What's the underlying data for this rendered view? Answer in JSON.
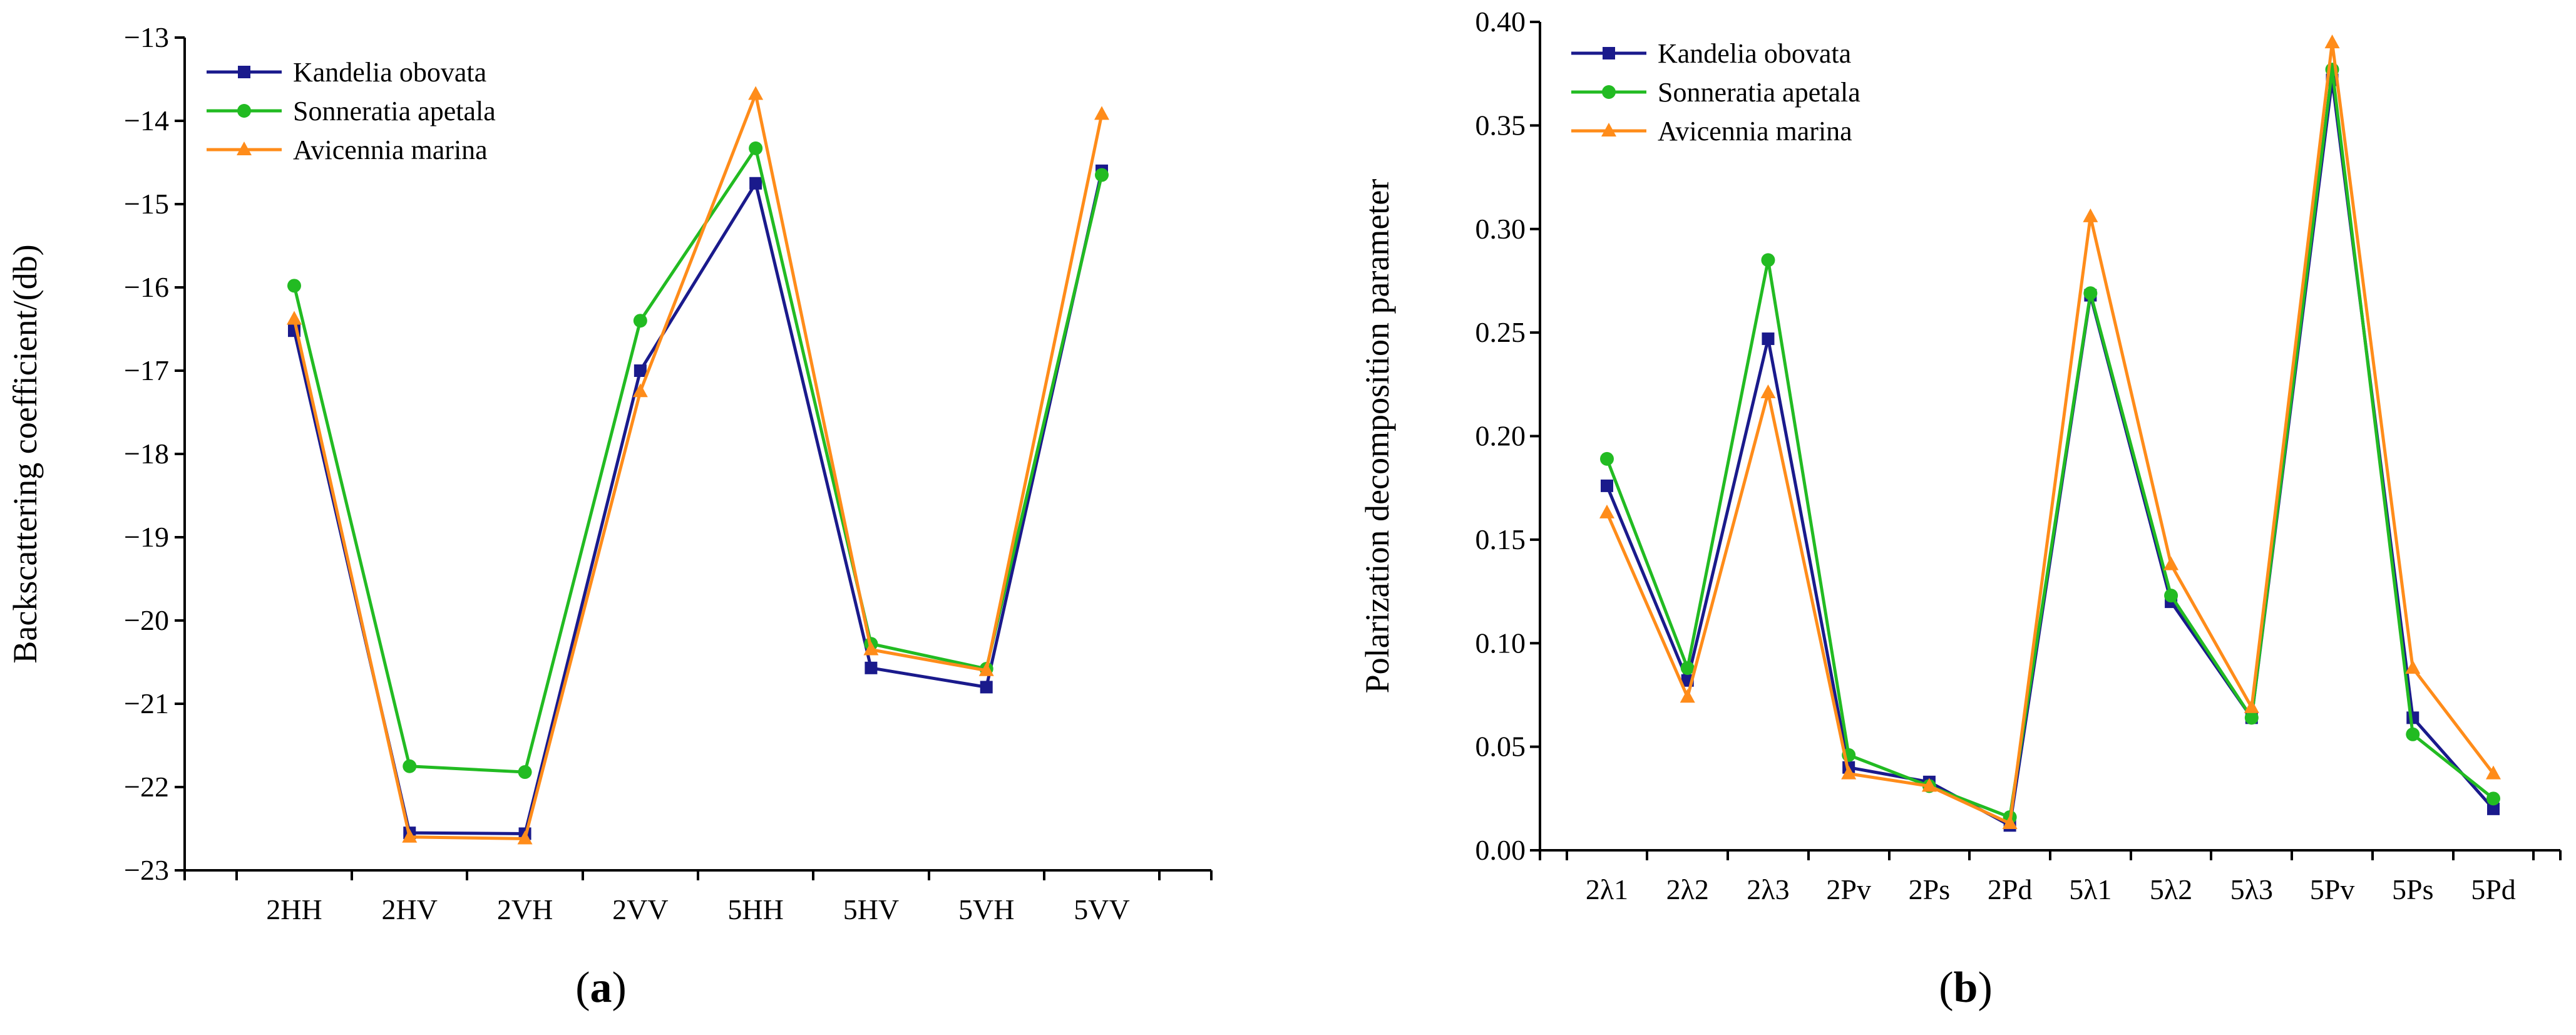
{
  "chart_data": [
    {
      "type": "line",
      "panel_label": "a",
      "title": "",
      "xlabel": "",
      "ylabel": "Backscattering coefficient/(db)",
      "categories": [
        "2HH",
        "2HV",
        "2VH",
        "2VV",
        "5HH",
        "5HV",
        "5VH",
        "5VV"
      ],
      "ylim": [
        -23,
        -13
      ],
      "yticks": [
        -23,
        -22,
        -21,
        -20,
        -19,
        -18,
        -17,
        -16,
        -15,
        -14,
        -13
      ],
      "ytick_labels": [
        "−23",
        "−22",
        "−21",
        "−20",
        "−19",
        "−18",
        "−17",
        "−16",
        "−15",
        "−14",
        "−13"
      ],
      "legend_position": "top-left",
      "series": [
        {
          "name": "Kandelia obovata",
          "color": "#1a1a8c",
          "marker": "square",
          "values": [
            -16.52,
            -22.55,
            -22.56,
            -17.0,
            -14.75,
            -20.57,
            -20.8,
            -14.6
          ]
        },
        {
          "name": "Sonneratia apetala",
          "color": "#22bb22",
          "marker": "circle",
          "values": [
            -15.98,
            -21.75,
            -21.82,
            -16.4,
            -14.33,
            -20.28,
            -20.58,
            -14.65
          ]
        },
        {
          "name": "Avicennia marina",
          "color": "#ff8c1a",
          "marker": "triangle",
          "values": [
            -16.38,
            -22.6,
            -22.62,
            -17.25,
            -13.68,
            -20.35,
            -20.6,
            -13.92
          ]
        }
      ]
    },
    {
      "type": "line",
      "panel_label": "b",
      "title": "",
      "xlabel": "",
      "ylabel": "Polarization decomposition parameter",
      "categories": [
        "2λ1",
        "2λ2",
        "2λ3",
        "2Pv",
        "2Ps",
        "2Pd",
        "5λ1",
        "5λ2",
        "5λ3",
        "5Pv",
        "5Ps",
        "5Pd"
      ],
      "ylim": [
        0,
        0.4
      ],
      "yticks": [
        0,
        0.05,
        0.1,
        0.15,
        0.2,
        0.25,
        0.3,
        0.35,
        0.4
      ],
      "ytick_labels": [
        "0.00",
        "0.05",
        "0.10",
        "0.15",
        "0.20",
        "0.25",
        "0.30",
        "0.35",
        "0.40"
      ],
      "legend_position": "top-left",
      "series": [
        {
          "name": "Kandelia obovata",
          "color": "#1a1a8c",
          "marker": "square",
          "values": [
            0.176,
            0.082,
            0.247,
            0.04,
            0.033,
            0.012,
            0.268,
            0.12,
            0.064,
            0.372,
            0.064,
            0.02
          ]
        },
        {
          "name": "Sonneratia apetala",
          "color": "#22bb22",
          "marker": "circle",
          "values": [
            0.189,
            0.088,
            0.285,
            0.046,
            0.031,
            0.016,
            0.269,
            0.123,
            0.064,
            0.377,
            0.056,
            0.025
          ]
        },
        {
          "name": "Avicennia marina",
          "color": "#ff8c1a",
          "marker": "triangle",
          "values": [
            0.163,
            0.074,
            0.221,
            0.037,
            0.031,
            0.013,
            0.306,
            0.138,
            0.069,
            0.39,
            0.088,
            0.037
          ]
        }
      ]
    }
  ]
}
